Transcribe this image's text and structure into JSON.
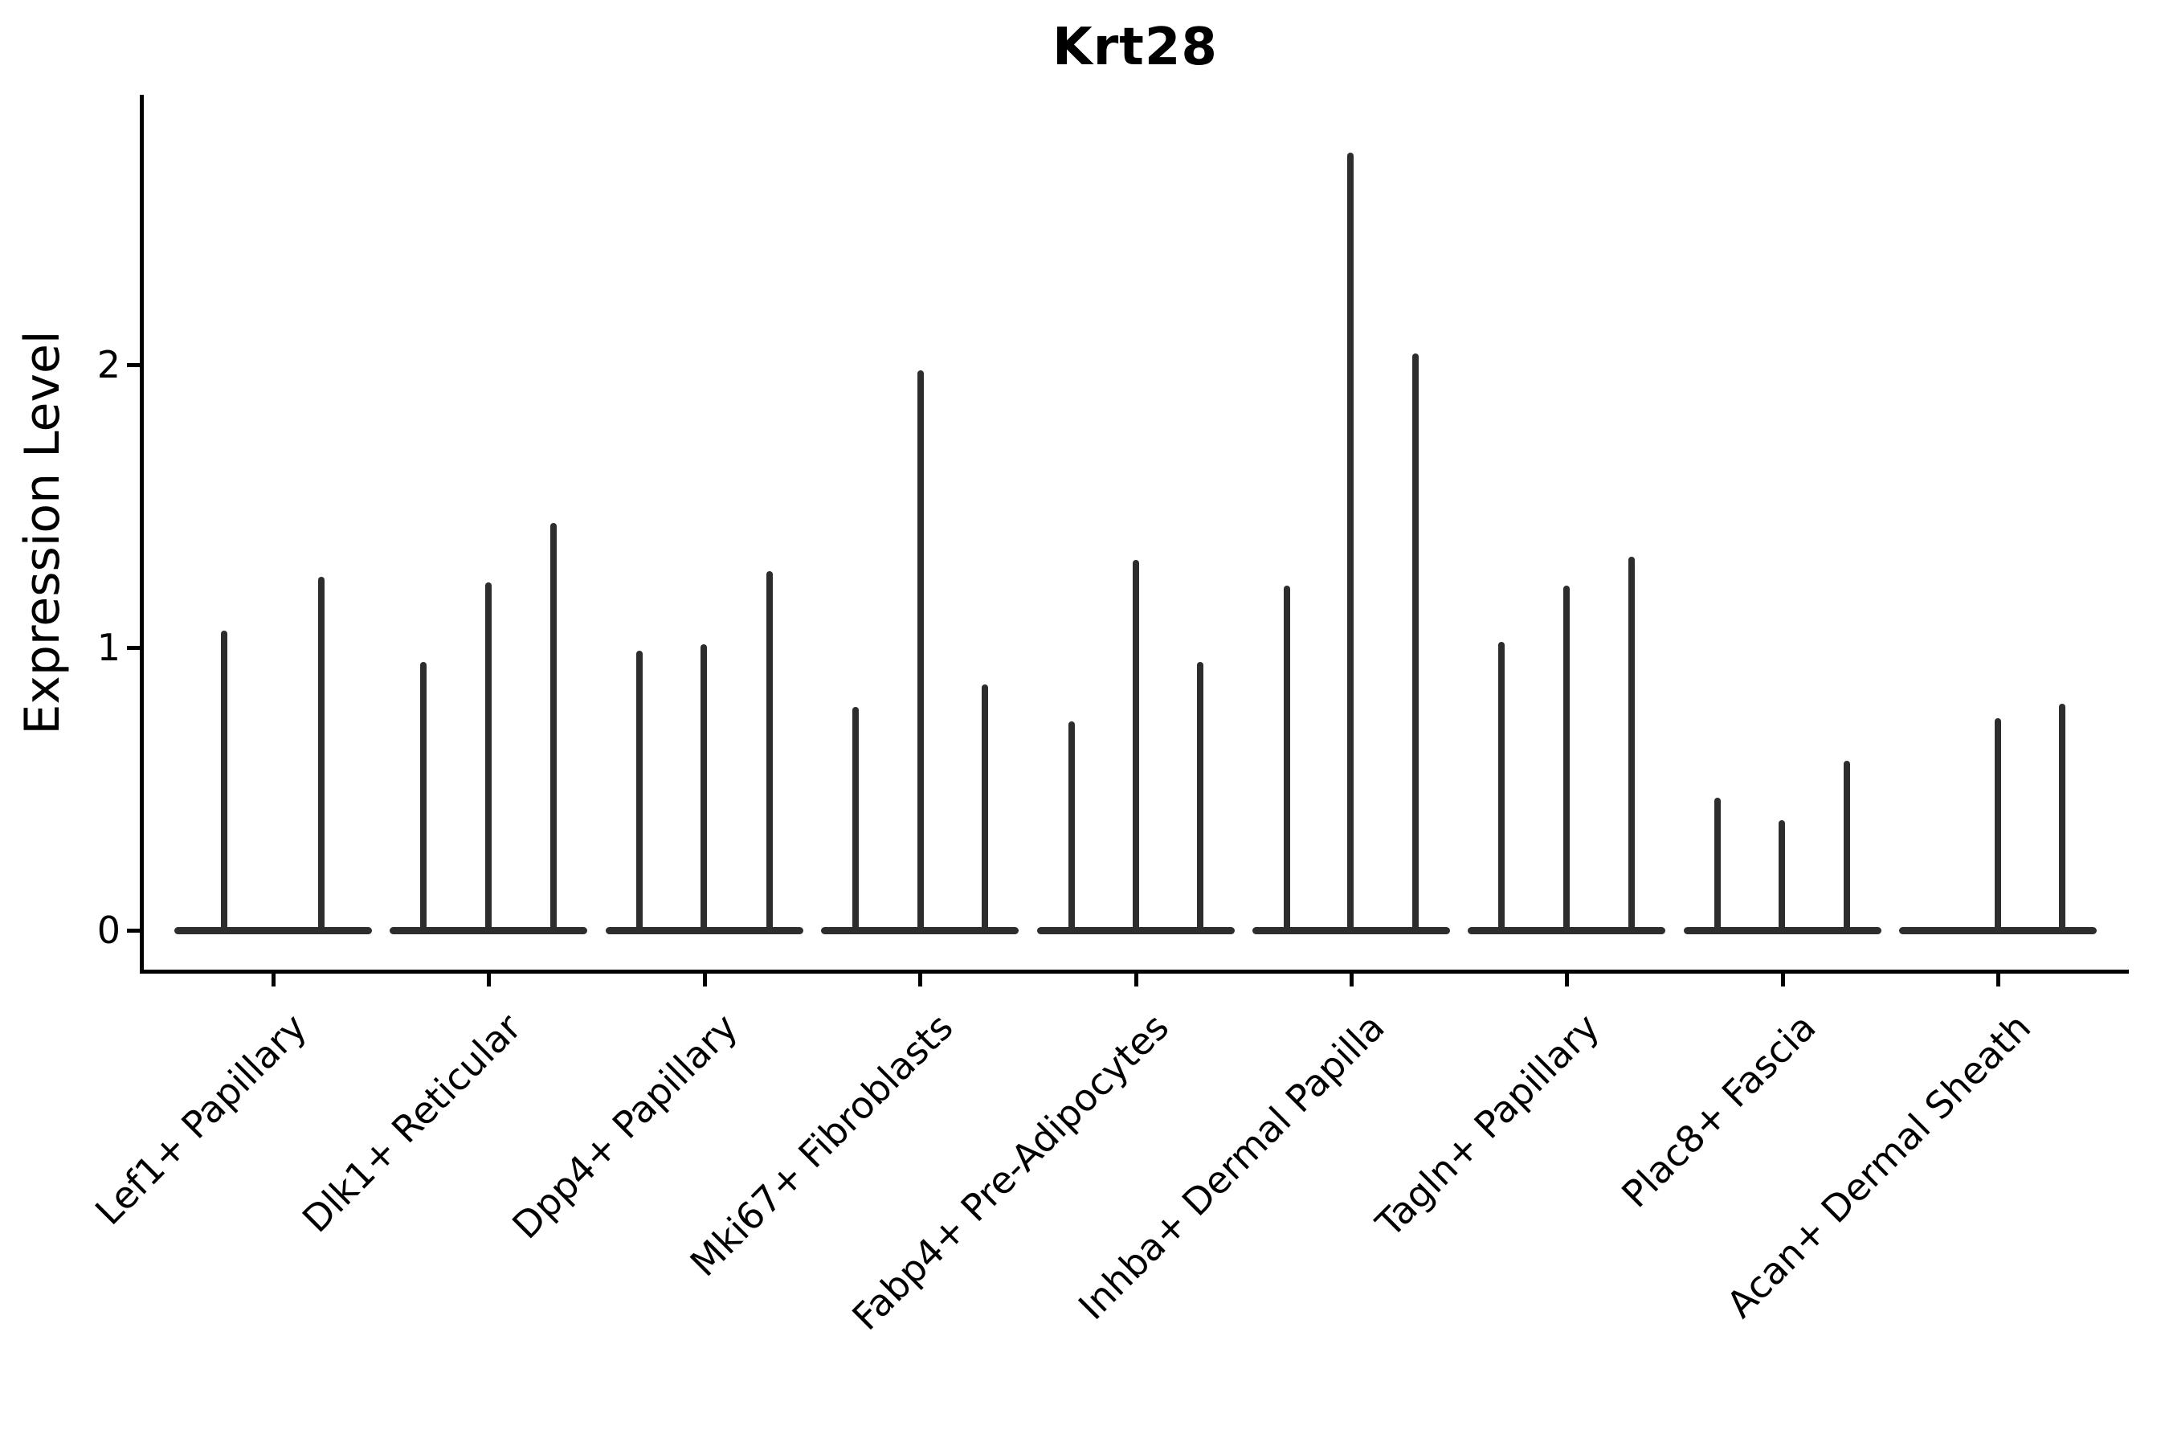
{
  "title": "Krt28",
  "y_axis": {
    "label": "Expression Level",
    "tick_labels": [
      "0",
      "1",
      "2"
    ]
  },
  "colors": {
    "ink": "#000000",
    "violin": "#2d2d2d"
  },
  "chart_data": {
    "type": "violin",
    "title": "Krt28",
    "ylabel": "Expression Level",
    "xlabel": "",
    "yticks": [
      0,
      1,
      2
    ],
    "ylim": [
      0,
      2.95
    ],
    "grid": false,
    "legend": "none",
    "description": "Collapsed violin plot; each category shows a flat baseline at 0 with thin vertical spikes reaching the maximum expression value of each sub-violin.",
    "categories": [
      "Lef1+ Papillary",
      "Dlk1+ Reticular",
      "Dpp4+ Papillary",
      "Mki67+ Fibroblasts",
      "Fabp4+ Pre-Adipocytes",
      "Inhba+ Dermal Papilla",
      "Tagln+ Papillary",
      "Plac8+ Fascia",
      "Acan+ Dermal Sheath"
    ],
    "groups": [
      {
        "label": "Lef1+ Papillary",
        "violins": [
          {
            "offset": -61,
            "max": 1.06
          },
          {
            "offset": 60,
            "max": 1.25
          }
        ]
      },
      {
        "label": "Dlk1+ Reticular",
        "violins": [
          {
            "offset": -81,
            "max": 0.95
          },
          {
            "offset": 0,
            "max": 1.23
          },
          {
            "offset": 81,
            "max": 1.44
          }
        ]
      },
      {
        "label": "Dpp4+ Papillary",
        "violins": [
          {
            "offset": -81,
            "max": 0.99
          },
          {
            "offset": -1,
            "max": 1.01
          },
          {
            "offset": 81,
            "max": 1.27
          }
        ]
      },
      {
        "label": "Mki67+ Fibroblasts",
        "violins": [
          {
            "offset": -80,
            "max": 0.79
          },
          {
            "offset": 1,
            "max": 1.98
          },
          {
            "offset": 81,
            "max": 0.87
          }
        ]
      },
      {
        "label": "Fabp4+ Pre-Adipocytes",
        "violins": [
          {
            "offset": -80,
            "max": 0.74
          },
          {
            "offset": 0,
            "max": 1.31
          },
          {
            "offset": 80,
            "max": 0.95
          }
        ]
      },
      {
        "label": "Inhba+ Dermal Papilla",
        "violins": [
          {
            "offset": -80,
            "max": 1.22
          },
          {
            "offset": -1,
            "max": 2.75
          },
          {
            "offset": 80,
            "max": 2.04
          }
        ]
      },
      {
        "label": "Tagln+ Papillary",
        "violins": [
          {
            "offset": -81,
            "max": 1.02
          },
          {
            "offset": 0,
            "max": 1.22
          },
          {
            "offset": 81,
            "max": 1.32
          }
        ]
      },
      {
        "label": "Plac8+ Fascia",
        "violins": [
          {
            "offset": -81,
            "max": 0.47
          },
          {
            "offset": -1,
            "max": 0.39
          },
          {
            "offset": 80,
            "max": 0.6
          }
        ]
      },
      {
        "label": "Acan+ Dermal Sheath",
        "violins": [
          {
            "offset": 0,
            "max": 0.75
          },
          {
            "offset": 80,
            "max": 0.8
          }
        ]
      }
    ]
  }
}
